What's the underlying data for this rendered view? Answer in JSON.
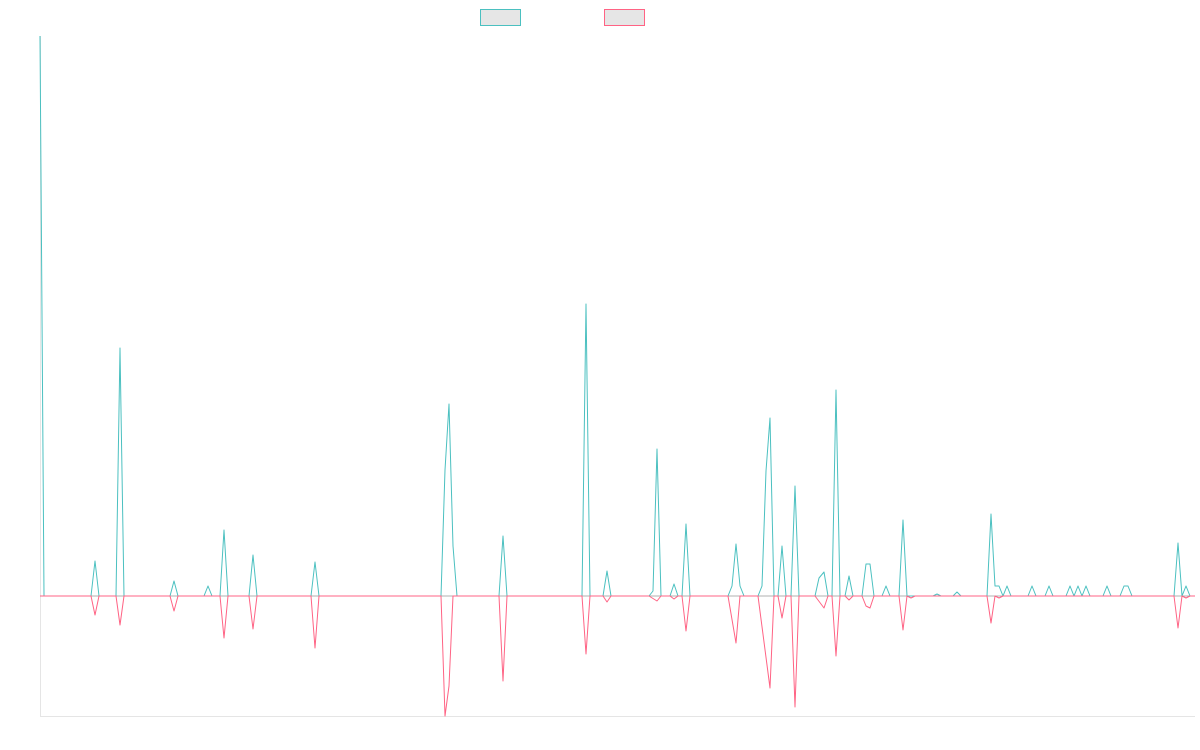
{
  "chart_data": {
    "type": "line",
    "xlim": [
      0,
      1155
    ],
    "ylim": [
      -120,
      560
    ],
    "series": [
      {
        "color": "#4bc0c0",
        "x": [
          0,
          4,
          51,
          55,
          59,
          76,
          80,
          84,
          130,
          134,
          138,
          164,
          168,
          172,
          180,
          184,
          188,
          209,
          213,
          217,
          271,
          275,
          279,
          401,
          405,
          409,
          413,
          417,
          459,
          463,
          467,
          542,
          546,
          550,
          563,
          567,
          571,
          609,
          613,
          617,
          621,
          630,
          634,
          638,
          642,
          646,
          650,
          688,
          692,
          696,
          700,
          704,
          718,
          722,
          726,
          730,
          734,
          738,
          742,
          746,
          751,
          755,
          759,
          775,
          779,
          784,
          788,
          792,
          796,
          800,
          805,
          809,
          813,
          822,
          826,
          830,
          834,
          842,
          846,
          850,
          859,
          863,
          867,
          893,
          897,
          901,
          913,
          917,
          921,
          947,
          951,
          955,
          959,
          963,
          967,
          971,
          988,
          992,
          996,
          1005,
          1009,
          1013,
          1026,
          1030,
          1034,
          1038,
          1042,
          1046,
          1050,
          1063,
          1067,
          1071,
          1080,
          1084,
          1088,
          1092,
          1134,
          1138,
          1142,
          1146,
          1150,
          1155
        ],
        "values": [
          560,
          0,
          0,
          35,
          0,
          0,
          248,
          0,
          0,
          15,
          0,
          0,
          10,
          0,
          0,
          66,
          0,
          0,
          41,
          0,
          0,
          34,
          0,
          0,
          126,
          192,
          50,
          0,
          0,
          60,
          0,
          0,
          292,
          0,
          0,
          25,
          0,
          0,
          5,
          147,
          0,
          0,
          12,
          0,
          0,
          72,
          0,
          0,
          10,
          52,
          10,
          0,
          0,
          10,
          125,
          178,
          0,
          0,
          50,
          0,
          0,
          110,
          0,
          0,
          18,
          24,
          0,
          0,
          206,
          0,
          0,
          20,
          0,
          0,
          32,
          32,
          0,
          0,
          10,
          0,
          0,
          76,
          0,
          0,
          2,
          0,
          0,
          4,
          0,
          0,
          82,
          10,
          10,
          0,
          10,
          0,
          0,
          10,
          0,
          0,
          10,
          0,
          0,
          10,
          0,
          10,
          0,
          10,
          0,
          0,
          10,
          0,
          0,
          10,
          10,
          0,
          0,
          53,
          0,
          10,
          0,
          0
        ]
      },
      {
        "color": "#ff6384",
        "x": [
          0,
          51,
          55,
          59,
          76,
          80,
          84,
          130,
          134,
          138,
          180,
          184,
          188,
          209,
          213,
          217,
          271,
          275,
          279,
          401,
          405,
          409,
          413,
          459,
          463,
          467,
          542,
          546,
          550,
          563,
          567,
          571,
          609,
          617,
          621,
          630,
          634,
          638,
          642,
          646,
          650,
          688,
          696,
          700,
          718,
          730,
          734,
          738,
          742,
          746,
          751,
          755,
          759,
          775,
          784,
          788,
          792,
          796,
          800,
          805,
          809,
          813,
          822,
          826,
          830,
          834,
          859,
          863,
          867,
          871,
          875,
          947,
          951,
          955,
          959,
          963,
          1134,
          1138,
          1142,
          1146,
          1150,
          1155
        ],
        "values": [
          0,
          0,
          -19,
          0,
          0,
          -29,
          0,
          0,
          -15,
          0,
          0,
          -42,
          0,
          0,
          -33,
          0,
          0,
          -52,
          0,
          0,
          -120,
          -90,
          0,
          0,
          -85,
          0,
          0,
          -58,
          0,
          0,
          -6,
          0,
          0,
          -5,
          0,
          0,
          -3,
          0,
          0,
          -35,
          0,
          0,
          -47,
          0,
          0,
          -92,
          0,
          0,
          -22,
          0,
          0,
          -111,
          0,
          0,
          -12,
          0,
          0,
          -60,
          0,
          0,
          -4,
          0,
          0,
          -10,
          -12,
          0,
          0,
          -34,
          0,
          -2,
          0,
          0,
          -27,
          0,
          -2,
          0,
          0,
          -32,
          0,
          -2,
          0,
          0
        ]
      }
    ]
  }
}
